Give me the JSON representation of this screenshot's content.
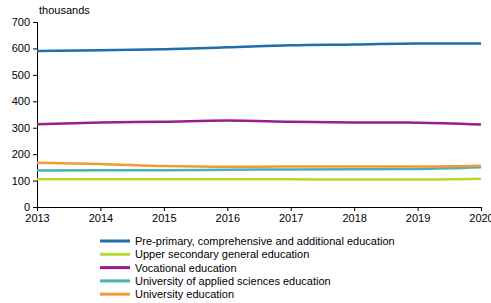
{
  "chart_data": {
    "type": "line",
    "y_label": "thousands",
    "x": [
      2013,
      2014,
      2015,
      2016,
      2017,
      2018,
      2019,
      2020
    ],
    "xlim": [
      2013,
      2020
    ],
    "xticks": [
      2013,
      2014,
      2015,
      2016,
      2017,
      2018,
      2019,
      2020
    ],
    "ylim": [
      0,
      700
    ],
    "yticks": [
      0,
      100,
      200,
      300,
      400,
      500,
      600,
      700
    ],
    "grid": false,
    "legend": "bottom",
    "series": [
      {
        "name": "Pre-primary, comprehensive and additional education",
        "color": "#1f6ea8",
        "values": [
          590,
          593,
          597,
          604,
          612,
          615,
          619,
          619
        ]
      },
      {
        "name": "Upper secondary general education",
        "color": "#bdd633",
        "values": [
          105,
          105,
          105,
          105,
          105,
          104,
          104,
          107
        ]
      },
      {
        "name": "Vocational education",
        "color": "#9e1a8c",
        "values": [
          313,
          320,
          323,
          327,
          323,
          320,
          319,
          312
        ]
      },
      {
        "name": "University of applied sciences education",
        "color": "#48b3b3",
        "values": [
          138,
          139,
          139,
          141,
          142,
          143,
          144,
          150
        ]
      },
      {
        "name": "University education",
        "color": "#f29a3a",
        "values": [
          167,
          163,
          155,
          152,
          153,
          153,
          153,
          156
        ]
      }
    ]
  }
}
